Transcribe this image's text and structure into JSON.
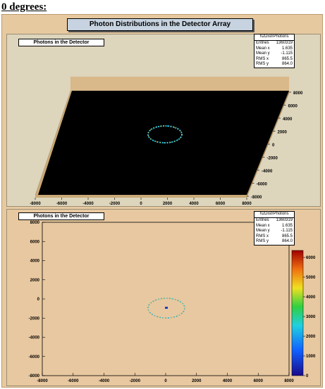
{
  "heading": "0 degrees:",
  "canvas": {
    "title": "Photon Distributions in the Detector Array"
  },
  "pad1": {
    "hist_title": "Photons in the Detector",
    "stats": {
      "name": "h2DistrPhotons",
      "rows": [
        {
          "label": "Entries",
          "value": "1360319"
        },
        {
          "label": "Mean x",
          "value": "1.635"
        },
        {
          "label": "Mean y",
          "value": "-1.115"
        },
        {
          "label": "RMS x",
          "value": "865.5"
        },
        {
          "label": "RMS y",
          "value": "864.0"
        }
      ]
    },
    "x_ticks": [
      "-8000",
      "-6000",
      "-4000",
      "-2000",
      "0",
      "2000",
      "4000",
      "6000",
      "8000"
    ],
    "y_ticks": [
      "8000",
      "6000",
      "4000",
      "2000",
      "0",
      "-2000",
      "-4000",
      "-6000",
      "-8000"
    ]
  },
  "pad2": {
    "hist_title": "Photons in the Detector",
    "stats": {
      "name": "h2DistrPhotons",
      "rows": [
        {
          "label": "Entries",
          "value": "1360319"
        },
        {
          "label": "Mean x",
          "value": "1.635"
        },
        {
          "label": "Mean y",
          "value": "-1.115"
        },
        {
          "label": "RMS x",
          "value": "865.5"
        },
        {
          "label": "RMS y",
          "value": "864.0"
        }
      ]
    },
    "x_ticks": [
      "-8000",
      "-6000",
      "-4000",
      "-2000",
      "0",
      "2000",
      "4000",
      "6000",
      "8000"
    ],
    "y_ticks": [
      "8000",
      "6000",
      "4000",
      "2000",
      "0",
      "-2000",
      "-4000",
      "-6000",
      "-8000"
    ],
    "z_ticks": [
      "6000",
      "5000",
      "4000",
      "3000",
      "2000",
      "1000",
      "0"
    ]
  }
}
